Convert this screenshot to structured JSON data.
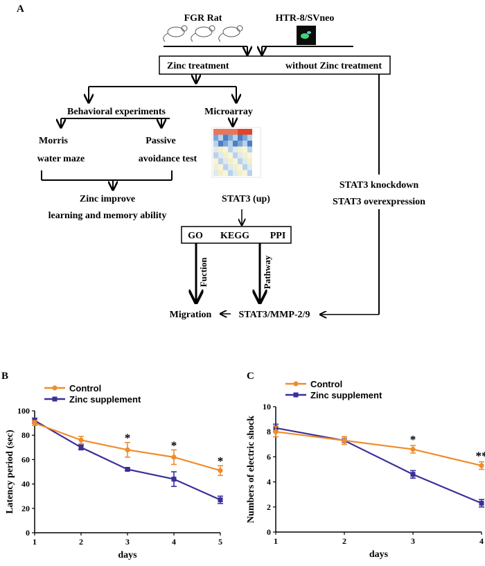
{
  "panel_a": {
    "label": "A",
    "fgr_rat": "FGR Rat",
    "htr_cells": "HTR-8/SVneo",
    "zinc_treatment": "Zinc treatment",
    "without_zinc": "without Zinc treatment",
    "behavioral": "Behavioral experiments",
    "microarray": "Microarray",
    "morris_1": "Morris",
    "morris_2": "water maze",
    "passive_1": "Passive",
    "passive_2": "avoidance test",
    "zinc_improve_1": "Zinc improve",
    "zinc_improve_2": "learning and memory ability",
    "stat3_up": "STAT3 (up)",
    "knockdown": "STAT3 knockdown",
    "overexpression": "STAT3 overexpression",
    "go": "GO",
    "kegg": "KEGG",
    "ppi": "PPI",
    "fuction": "Fuction",
    "pathway": "Pathway",
    "migration": "Migration",
    "stat3_mmp": "STAT3/MMP-2/9",
    "colors": {
      "heat_red": "#e0442c",
      "heat_blue": "#4a7fc4",
      "heat_light": "#f2f0c8"
    }
  },
  "chart_data": [
    {
      "type": "line",
      "panel": "B",
      "title": "",
      "xlabel": "days",
      "ylabel": "Latency period (sec)",
      "x": [
        1,
        2,
        3,
        4,
        5
      ],
      "xlim": [
        1,
        5
      ],
      "ylim": [
        0,
        100
      ],
      "yticks": [
        0,
        20,
        40,
        60,
        80,
        100
      ],
      "grid": false,
      "legend": "top-left",
      "series": [
        {
          "name": "Control",
          "color": "#f08c2a",
          "marker": "circle",
          "values": [
            90,
            76,
            68,
            62,
            51
          ],
          "errors": [
            2,
            3,
            6,
            6,
            4
          ]
        },
        {
          "name": "Zinc supplement",
          "color": "#3a2f9a",
          "marker": "square",
          "values": [
            92,
            70,
            52,
            44,
            27
          ],
          "errors": [
            2,
            2,
            1,
            6,
            3
          ]
        }
      ],
      "annotations": [
        {
          "x": 3,
          "y": 78,
          "text": "*"
        },
        {
          "x": 4,
          "y": 72,
          "text": "*"
        },
        {
          "x": 5,
          "y": 59,
          "text": "*"
        }
      ]
    },
    {
      "type": "line",
      "panel": "C",
      "title": "",
      "xlabel": "days",
      "ylabel": "Numbers of electric shock",
      "x": [
        1,
        2,
        3,
        4
      ],
      "xlim": [
        1,
        4
      ],
      "ylim": [
        0,
        10
      ],
      "yticks": [
        0,
        2,
        4,
        6,
        8,
        10
      ],
      "grid": false,
      "legend": "top-left",
      "series": [
        {
          "name": "Control",
          "color": "#f08c2a",
          "marker": "circle",
          "values": [
            8.0,
            7.3,
            6.6,
            5.3
          ],
          "errors": [
            0.4,
            0.3,
            0.3,
            0.3
          ]
        },
        {
          "name": "Zinc supplement",
          "color": "#3a2f9a",
          "marker": "square",
          "values": [
            8.3,
            7.3,
            4.6,
            2.3
          ],
          "errors": [
            0.3,
            0.3,
            0.3,
            0.3
          ]
        }
      ],
      "annotations": [
        {
          "x": 3,
          "y": 7.4,
          "text": "*"
        },
        {
          "x": 4,
          "y": 6.1,
          "text": "**"
        }
      ]
    }
  ]
}
